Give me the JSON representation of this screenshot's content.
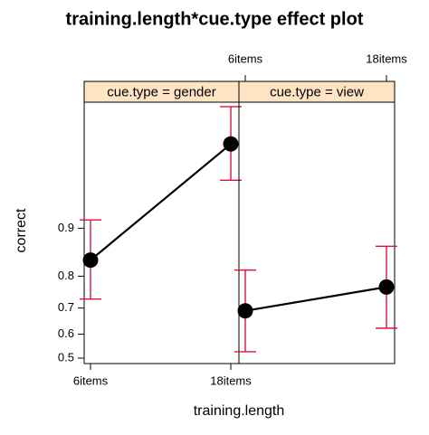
{
  "chart_data": {
    "type": "effect",
    "title": "training.length*cue.type effect plot",
    "x_label": "training.length",
    "y_label": "correct",
    "categories": [
      "6items",
      "18items"
    ],
    "yscale": "logit",
    "ylim": [
      0.477,
      0.987
    ],
    "yticks": [
      0.5,
      0.6,
      0.7,
      0.8,
      0.9
    ],
    "strip_color": "#ffe4c4",
    "line_color": "#000000",
    "error_color": "#dc143c",
    "series": [
      {
        "name": "cue.type = gender",
        "values": [
          0.84,
          0.974
        ],
        "lower": [
          0.731,
          0.953
        ],
        "upper": [
          0.912,
          0.986
        ]
      },
      {
        "name": "cue.type = view",
        "values": [
          0.69,
          0.769
        ],
        "lower": [
          0.527,
          0.624
        ],
        "upper": [
          0.816,
          0.869
        ]
      }
    ]
  }
}
